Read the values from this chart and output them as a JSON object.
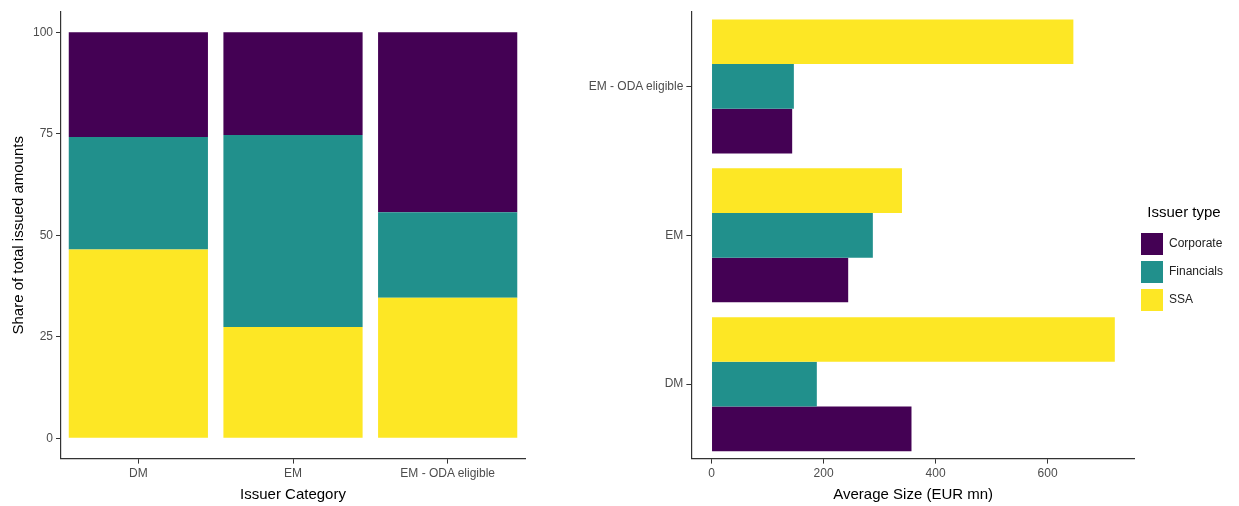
{
  "chart_data": [
    {
      "type": "bar",
      "stacked": true,
      "xlabel": "Issuer Category",
      "ylabel": "Share of total issued amounts",
      "categories": [
        "DM",
        "EM",
        "EM - ODA eligible"
      ],
      "series": [
        {
          "color": "#fde725",
          "values": [
            46.5,
            27.4,
            34.6
          ]
        },
        {
          "color": "#21908c",
          "values": [
            27.7,
            47.3,
            21.1
          ]
        },
        {
          "color": "#440154",
          "values": [
            25.8,
            25.3,
            44.3
          ]
        }
      ],
      "ylim": [
        -5,
        105
      ],
      "yticks": [
        0,
        25,
        50,
        75,
        100
      ],
      "grid": false,
      "legend": false
    },
    {
      "type": "bar",
      "orientation": "horizontal",
      "xlabel": "Average Size (EUR mn)",
      "legend_title": "Issuer type",
      "categories": [
        "EM - ODA eligible",
        "EM",
        "DM"
      ],
      "series": [
        {
          "name": "Corporate",
          "color": "#440154",
          "values": [
            144,
            244,
            357
          ]
        },
        {
          "name": "Financials",
          "color": "#21908c",
          "values": [
            147,
            288,
            188
          ]
        },
        {
          "name": "SSA",
          "color": "#fde725",
          "values": [
            646,
            340,
            720
          ]
        }
      ],
      "xlim": [
        -36,
        756
      ],
      "xticks": [
        0,
        200,
        400,
        600
      ],
      "grid": false,
      "legend": "right"
    }
  ]
}
